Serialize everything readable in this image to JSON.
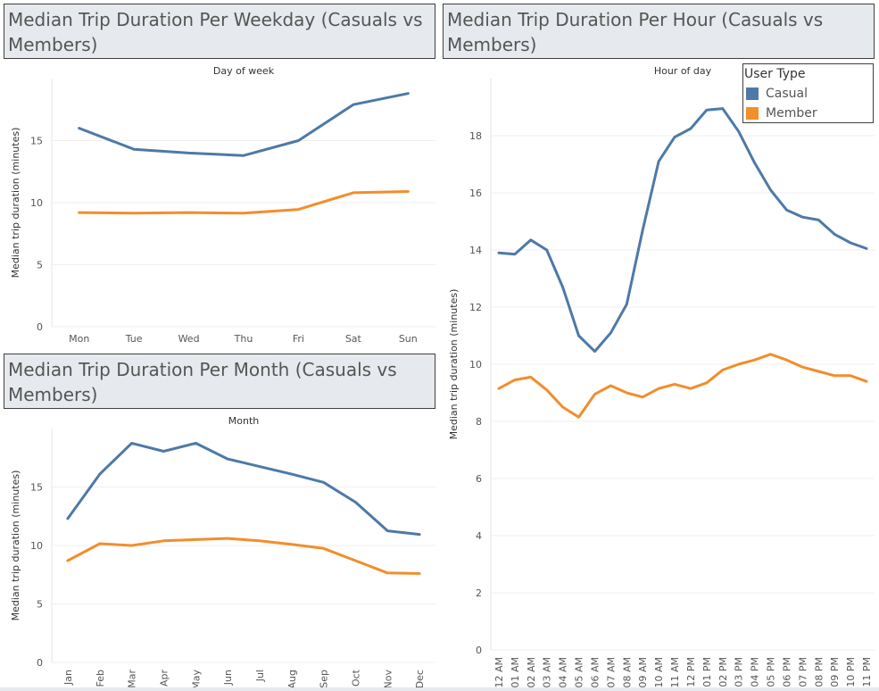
{
  "titles": {
    "weekday": "Median Trip Duration Per Weekday (Casuals vs Members)",
    "hour": "Median Trip Duration Per Hour (Casuals vs Members)",
    "month": "Median Trip Duration Per Month (Casuals vs Members)"
  },
  "legend": {
    "title": "User Type",
    "items": [
      {
        "label": "Casual",
        "color": "#4e79a7"
      },
      {
        "label": "Member",
        "color": "#f28e2b"
      }
    ]
  },
  "chart_data": [
    {
      "type": "line",
      "title": "Median Trip Duration Per Weekday (Casuals vs Members)",
      "xlabel": "Day of week",
      "ylabel": "Median trip duration (minutes)",
      "categories": [
        "Mon",
        "Tue",
        "Wed",
        "Thu",
        "Fri",
        "Sat",
        "Sun"
      ],
      "ylim": [
        0,
        20
      ],
      "yticks": [
        0,
        5,
        10,
        15
      ],
      "grid": true,
      "series": [
        {
          "name": "Casual",
          "color": "#4e79a7",
          "values": [
            16.0,
            14.3,
            14.0,
            13.8,
            15.0,
            17.9,
            18.8
          ]
        },
        {
          "name": "Member",
          "color": "#f28e2b",
          "values": [
            9.2,
            9.15,
            9.2,
            9.15,
            9.45,
            10.8,
            10.9
          ]
        }
      ]
    },
    {
      "type": "line",
      "title": "Median Trip Duration Per Hour (Casuals vs Members)",
      "xlabel": "Hour of day",
      "ylabel": "Median trip duration (minutes)",
      "categories": [
        "12 AM",
        "01 AM",
        "02 AM",
        "03 AM",
        "04 AM",
        "05 AM",
        "06 AM",
        "07 AM",
        "08 AM",
        "09 AM",
        "10 AM",
        "11 AM",
        "12 PM",
        "01 PM",
        "02 PM",
        "03 PM",
        "04 PM",
        "05 PM",
        "06 PM",
        "07 PM",
        "08 PM",
        "09 PM",
        "10 PM",
        "11 PM"
      ],
      "ylim": [
        0,
        20
      ],
      "yticks": [
        0,
        2,
        4,
        6,
        8,
        10,
        12,
        14,
        16,
        18
      ],
      "grid": true,
      "legend": "top-right",
      "series": [
        {
          "name": "Casual",
          "color": "#4e79a7",
          "values": [
            13.9,
            13.85,
            14.35,
            14.0,
            12.7,
            11.0,
            10.45,
            11.1,
            12.1,
            14.7,
            17.1,
            17.95,
            18.25,
            18.9,
            18.95,
            18.15,
            17.05,
            16.1,
            15.4,
            15.15,
            15.05,
            14.55,
            14.25,
            14.05
          ]
        },
        {
          "name": "Member",
          "color": "#f28e2b",
          "values": [
            9.15,
            9.45,
            9.55,
            9.1,
            8.5,
            8.15,
            8.95,
            9.25,
            9.0,
            8.85,
            9.15,
            9.3,
            9.15,
            9.35,
            9.8,
            10.0,
            10.15,
            10.35,
            10.15,
            9.9,
            9.75,
            9.6,
            9.6,
            9.4
          ]
        }
      ]
    },
    {
      "type": "line",
      "title": "Median Trip Duration Per Month (Casuals vs Members)",
      "xlabel": "Month",
      "ylabel": "Median trip duration (minutes)",
      "categories": [
        "Jan",
        "Feb",
        "Mar",
        "Apr",
        "May",
        "Jun",
        "Jul",
        "Aug",
        "Sep",
        "Oct",
        "Nov",
        "Dec"
      ],
      "ylim": [
        0,
        20
      ],
      "yticks": [
        0,
        5,
        10,
        15
      ],
      "grid": true,
      "series": [
        {
          "name": "Casual",
          "color": "#4e79a7",
          "values": [
            12.3,
            16.1,
            18.75,
            18.05,
            18.75,
            17.4,
            16.75,
            16.1,
            15.4,
            13.7,
            11.25,
            10.95
          ]
        },
        {
          "name": "Member",
          "color": "#f28e2b",
          "values": [
            8.7,
            10.15,
            10.0,
            10.4,
            10.5,
            10.6,
            10.4,
            10.1,
            9.75,
            8.7,
            7.65,
            7.6
          ]
        }
      ]
    }
  ]
}
